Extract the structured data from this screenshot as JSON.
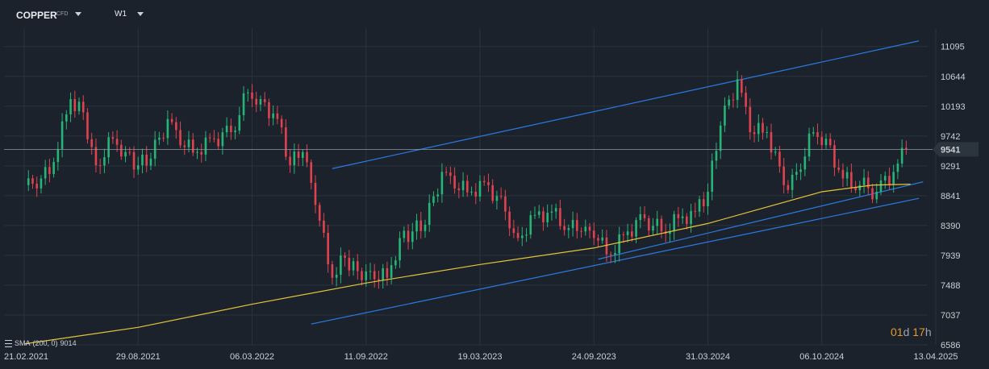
{
  "header": {
    "symbol": "COPPER",
    "symbol_tag": "CFD",
    "timeframe": "W1"
  },
  "indicator": {
    "name": "SMA",
    "params": "(200, 0)",
    "value": "9014"
  },
  "countdown": {
    "days": "01",
    "days_unit": "d",
    "hours": "17",
    "hours_unit": "h"
  },
  "current_price_label": "9541",
  "colors": {
    "background": "#1b222b",
    "bull": "#26b577",
    "bear": "#e0424f",
    "sma": "#e6c43a",
    "trendline": "#2b7be4",
    "price_line": "#8b96a3",
    "price_tag_bg": "#2c343e"
  },
  "chart_data": {
    "type": "candlestick",
    "title": "",
    "xlabel": "",
    "ylabel": "",
    "x_ticks": [
      "21.02.2021",
      "29.08.2021",
      "06.03.2022",
      "11.09.2022",
      "19.03.2023",
      "24.09.2023",
      "31.03.2024",
      "06.10.2024",
      "13.04.2025"
    ],
    "y_ticks": [
      6586,
      7037,
      7488,
      7939,
      8390,
      8841,
      9291,
      9742,
      10193,
      10644,
      11095
    ],
    "ylim": [
      6586,
      11250
    ],
    "xlim": [
      "2021-02-21",
      "2025-04-13"
    ],
    "grid": true,
    "series": [
      {
        "kind": "price",
        "name": "COPPER",
        "points": [
          {
            "date": "2021-02-21",
            "close": 9000
          },
          {
            "date": "2021-03-14",
            "close": 8950
          },
          {
            "date": "2021-04-11",
            "close": 9350
          },
          {
            "date": "2021-05-09",
            "close": 10300
          },
          {
            "date": "2021-05-30",
            "close": 10100
          },
          {
            "date": "2021-06-20",
            "close": 9300
          },
          {
            "date": "2021-07-18",
            "close": 9700
          },
          {
            "date": "2021-08-08",
            "close": 9500
          },
          {
            "date": "2021-08-29",
            "close": 9300
          },
          {
            "date": "2021-09-19",
            "close": 9400
          },
          {
            "date": "2021-10-17",
            "close": 10000
          },
          {
            "date": "2021-11-07",
            "close": 9600
          },
          {
            "date": "2021-12-05",
            "close": 9500
          },
          {
            "date": "2022-01-02",
            "close": 9700
          },
          {
            "date": "2022-01-30",
            "close": 9800
          },
          {
            "date": "2022-02-27",
            "close": 10400
          },
          {
            "date": "2022-03-20",
            "close": 10300
          },
          {
            "date": "2022-04-17",
            "close": 10000
          },
          {
            "date": "2022-05-08",
            "close": 9300
          },
          {
            "date": "2022-05-29",
            "close": 9500
          },
          {
            "date": "2022-06-19",
            "close": 8700
          },
          {
            "date": "2022-07-17",
            "close": 7600
          },
          {
            "date": "2022-08-07",
            "close": 7900
          },
          {
            "date": "2022-08-28",
            "close": 7700
          },
          {
            "date": "2022-09-18",
            "close": 7700
          },
          {
            "date": "2022-10-16",
            "close": 7600
          },
          {
            "date": "2022-11-06",
            "close": 8200
          },
          {
            "date": "2022-11-27",
            "close": 8300
          },
          {
            "date": "2022-12-18",
            "close": 8400
          },
          {
            "date": "2023-01-15",
            "close": 9200
          },
          {
            "date": "2023-02-05",
            "close": 8950
          },
          {
            "date": "2023-03-05",
            "close": 8900
          },
          {
            "date": "2023-04-02",
            "close": 9000
          },
          {
            "date": "2023-04-30",
            "close": 8600
          },
          {
            "date": "2023-05-21",
            "close": 8200
          },
          {
            "date": "2023-06-18",
            "close": 8550
          },
          {
            "date": "2023-07-16",
            "close": 8600
          },
          {
            "date": "2023-08-13",
            "close": 8350
          },
          {
            "date": "2023-09-03",
            "close": 8300
          },
          {
            "date": "2023-09-24",
            "close": 8200
          },
          {
            "date": "2023-10-22",
            "close": 7950
          },
          {
            "date": "2023-11-19",
            "close": 8300
          },
          {
            "date": "2023-12-17",
            "close": 8500
          },
          {
            "date": "2024-01-14",
            "close": 8300
          },
          {
            "date": "2024-02-11",
            "close": 8500
          },
          {
            "date": "2024-03-10",
            "close": 8600
          },
          {
            "date": "2024-03-31",
            "close": 8900
          },
          {
            "date": "2024-04-21",
            "close": 9900
          },
          {
            "date": "2024-05-19",
            "close": 10600
          },
          {
            "date": "2024-06-09",
            "close": 9800
          },
          {
            "date": "2024-07-07",
            "close": 9800
          },
          {
            "date": "2024-08-04",
            "close": 9000
          },
          {
            "date": "2024-08-25",
            "close": 9200
          },
          {
            "date": "2024-09-22",
            "close": 9800
          },
          {
            "date": "2024-10-13",
            "close": 9700
          },
          {
            "date": "2024-11-10",
            "close": 9100
          },
          {
            "date": "2024-12-08",
            "close": 9000
          },
          {
            "date": "2025-01-05",
            "close": 8900
          },
          {
            "date": "2025-02-02",
            "close": 9200
          },
          {
            "date": "2025-02-23",
            "close": 9541
          }
        ]
      },
      {
        "kind": "sma",
        "name": "SMA (200, 0)",
        "points": [
          {
            "date": "2021-02-21",
            "value": 6600
          },
          {
            "date": "2021-08-29",
            "value": 6850
          },
          {
            "date": "2022-03-06",
            "value": 7200
          },
          {
            "date": "2022-09-11",
            "value": 7520
          },
          {
            "date": "2023-03-19",
            "value": 7800
          },
          {
            "date": "2023-09-24",
            "value": 8050
          },
          {
            "date": "2024-03-31",
            "value": 8420
          },
          {
            "date": "2024-10-06",
            "value": 8900
          },
          {
            "date": "2024-12-29",
            "value": 9000
          },
          {
            "date": "2025-03-02",
            "value": 9014
          }
        ]
      },
      {
        "kind": "trendline",
        "name": "",
        "points": [
          {
            "date": "2022-07-17",
            "value": 9250
          },
          {
            "date": "2025-03-16",
            "value": 11180
          }
        ]
      },
      {
        "kind": "trendline",
        "name": "",
        "points": [
          {
            "date": "2022-06-12",
            "value": 6900
          },
          {
            "date": "2025-03-16",
            "value": 8800
          }
        ]
      },
      {
        "kind": "trendline",
        "name": "",
        "points": [
          {
            "date": "2023-10-01",
            "value": 7880
          },
          {
            "date": "2025-03-23",
            "value": 9050
          }
        ]
      }
    ],
    "current_price": 9541
  }
}
